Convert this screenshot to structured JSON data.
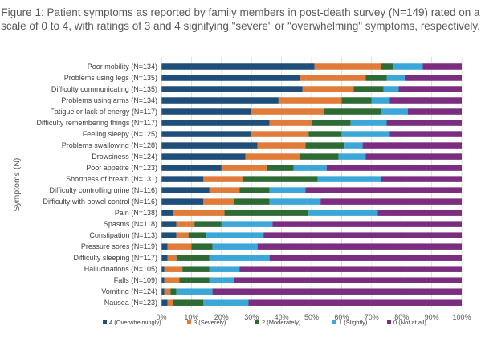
{
  "chart_data": {
    "type": "bar",
    "orientation": "horizontal",
    "stacked": true,
    "title": "Figure 1: Patient symptoms as reported by family members in post-death survey (N=149) rated on a scale of 0 to 4, with ratings of 3 and 4 signifying \"severe\" or \"overwhelming\" symptoms, respectively.",
    "ylabel": "Symptoms (N)",
    "xlabel": "",
    "xlim": [
      0,
      100
    ],
    "x_ticks": [
      "0%",
      "10%",
      "20%",
      "30%",
      "40%",
      "50%",
      "60%",
      "70%",
      "80%",
      "90%",
      "100%"
    ],
    "grid": true,
    "legend_position": "bottom",
    "categories": [
      "Poor mobility (N=134)",
      "Problems using legs (N=135)",
      "Difficulty communicating (N=135)",
      "Problems using arms (N=134)",
      "Fatigue or lack of energy (N=117)",
      "Difficulty remembering things (N=117)",
      "Feeling sleepy (N=125)",
      "Problems swallowing (N=128)",
      "Drowsiness (N=124)",
      "Poor appetite (N=123)",
      "Shortness of breath (N=131)",
      "Difficulty controlling urine (N=116)",
      "Difficulty with bowel control (N=116)",
      "Pain (N=138)",
      "Spasms (N=118)",
      "Constipation (N=113)",
      "Pressure sores (N=119)",
      "Difficulty sleeping (N=117)",
      "Hallucinations (N=105)",
      "Falls (N=109)",
      "Vomiting (N=124)",
      "Nausea (N=123)"
    ],
    "series": [
      {
        "name": "4 (Overwhelmingly)",
        "color": "#1f4e79",
        "values": [
          51,
          46,
          47,
          39,
          30,
          36,
          30,
          32,
          28,
          20,
          14,
          16,
          14,
          4,
          5,
          5,
          2,
          2,
          1,
          1,
          1,
          2
        ]
      },
      {
        "name": "3 (Severely)",
        "color": "#e07b39",
        "values": [
          22,
          22,
          17,
          21,
          24,
          14,
          19,
          16,
          18,
          15,
          13,
          10,
          10,
          17,
          6,
          4,
          8,
          3,
          6,
          5,
          2,
          2
        ]
      },
      {
        "name": "2 (Moderately)",
        "color": "#2e6b34",
        "values": [
          4,
          7,
          10,
          10,
          19,
          13,
          11,
          13,
          13,
          9,
          25,
          10,
          12,
          28,
          9,
          6,
          7,
          11,
          9,
          10,
          2,
          10
        ]
      },
      {
        "name": "1 (Slightly)",
        "color": "#3aa7d8",
        "values": [
          10,
          6,
          5,
          6,
          9,
          12,
          16,
          6,
          9,
          11,
          21,
          12,
          17,
          23,
          17,
          19,
          15,
          20,
          10,
          8,
          12,
          15
        ]
      },
      {
        "name": "0 (Not at all)",
        "color": "#7b2d7f",
        "values": [
          13,
          19,
          21,
          24,
          18,
          25,
          24,
          33,
          32,
          45,
          27,
          52,
          47,
          28,
          63,
          66,
          68,
          64,
          74,
          76,
          83,
          71
        ]
      }
    ]
  }
}
